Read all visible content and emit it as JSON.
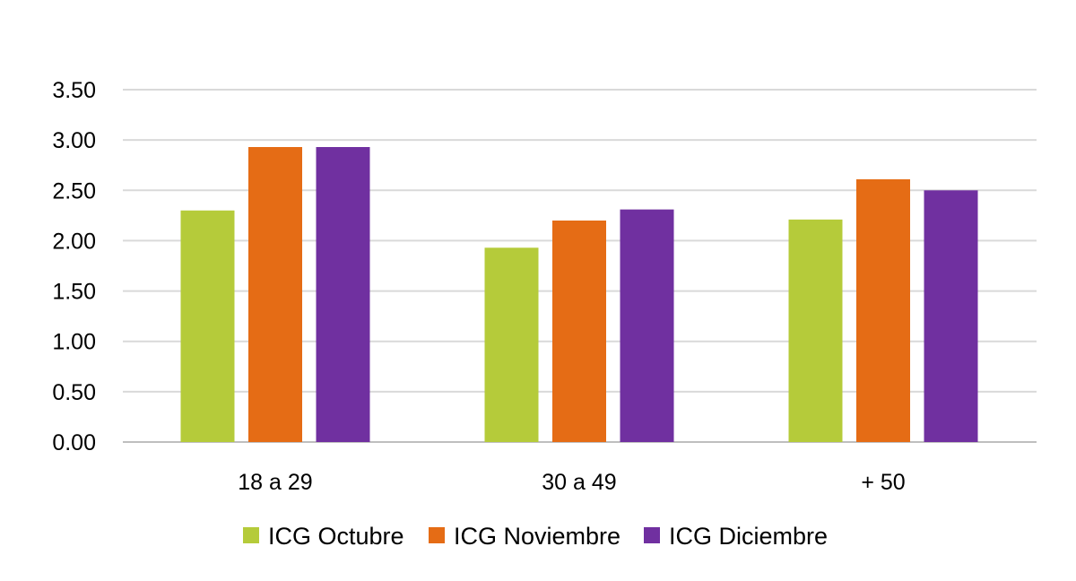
{
  "chart_data": {
    "type": "bar",
    "title": "",
    "xlabel": "",
    "ylabel": "",
    "categories": [
      "18 a 29",
      "30 a 49",
      "+ 50"
    ],
    "series": [
      {
        "name": "ICG Octubre",
        "color": "#B5CB3A",
        "values": [
          2.3,
          1.93,
          2.21
        ]
      },
      {
        "name": "ICG Noviembre",
        "color": "#E56C15",
        "values": [
          2.93,
          2.2,
          2.61
        ]
      },
      {
        "name": "ICG Diciembre",
        "color": "#7030A0",
        "values": [
          2.93,
          2.31,
          2.5
        ]
      }
    ],
    "yticks": [
      "0.00",
      "0.50",
      "1.00",
      "1.50",
      "2.00",
      "2.50",
      "3.00",
      "3.50"
    ],
    "ylim": [
      0,
      3.5
    ],
    "grid": true,
    "legend_position": "bottom"
  }
}
